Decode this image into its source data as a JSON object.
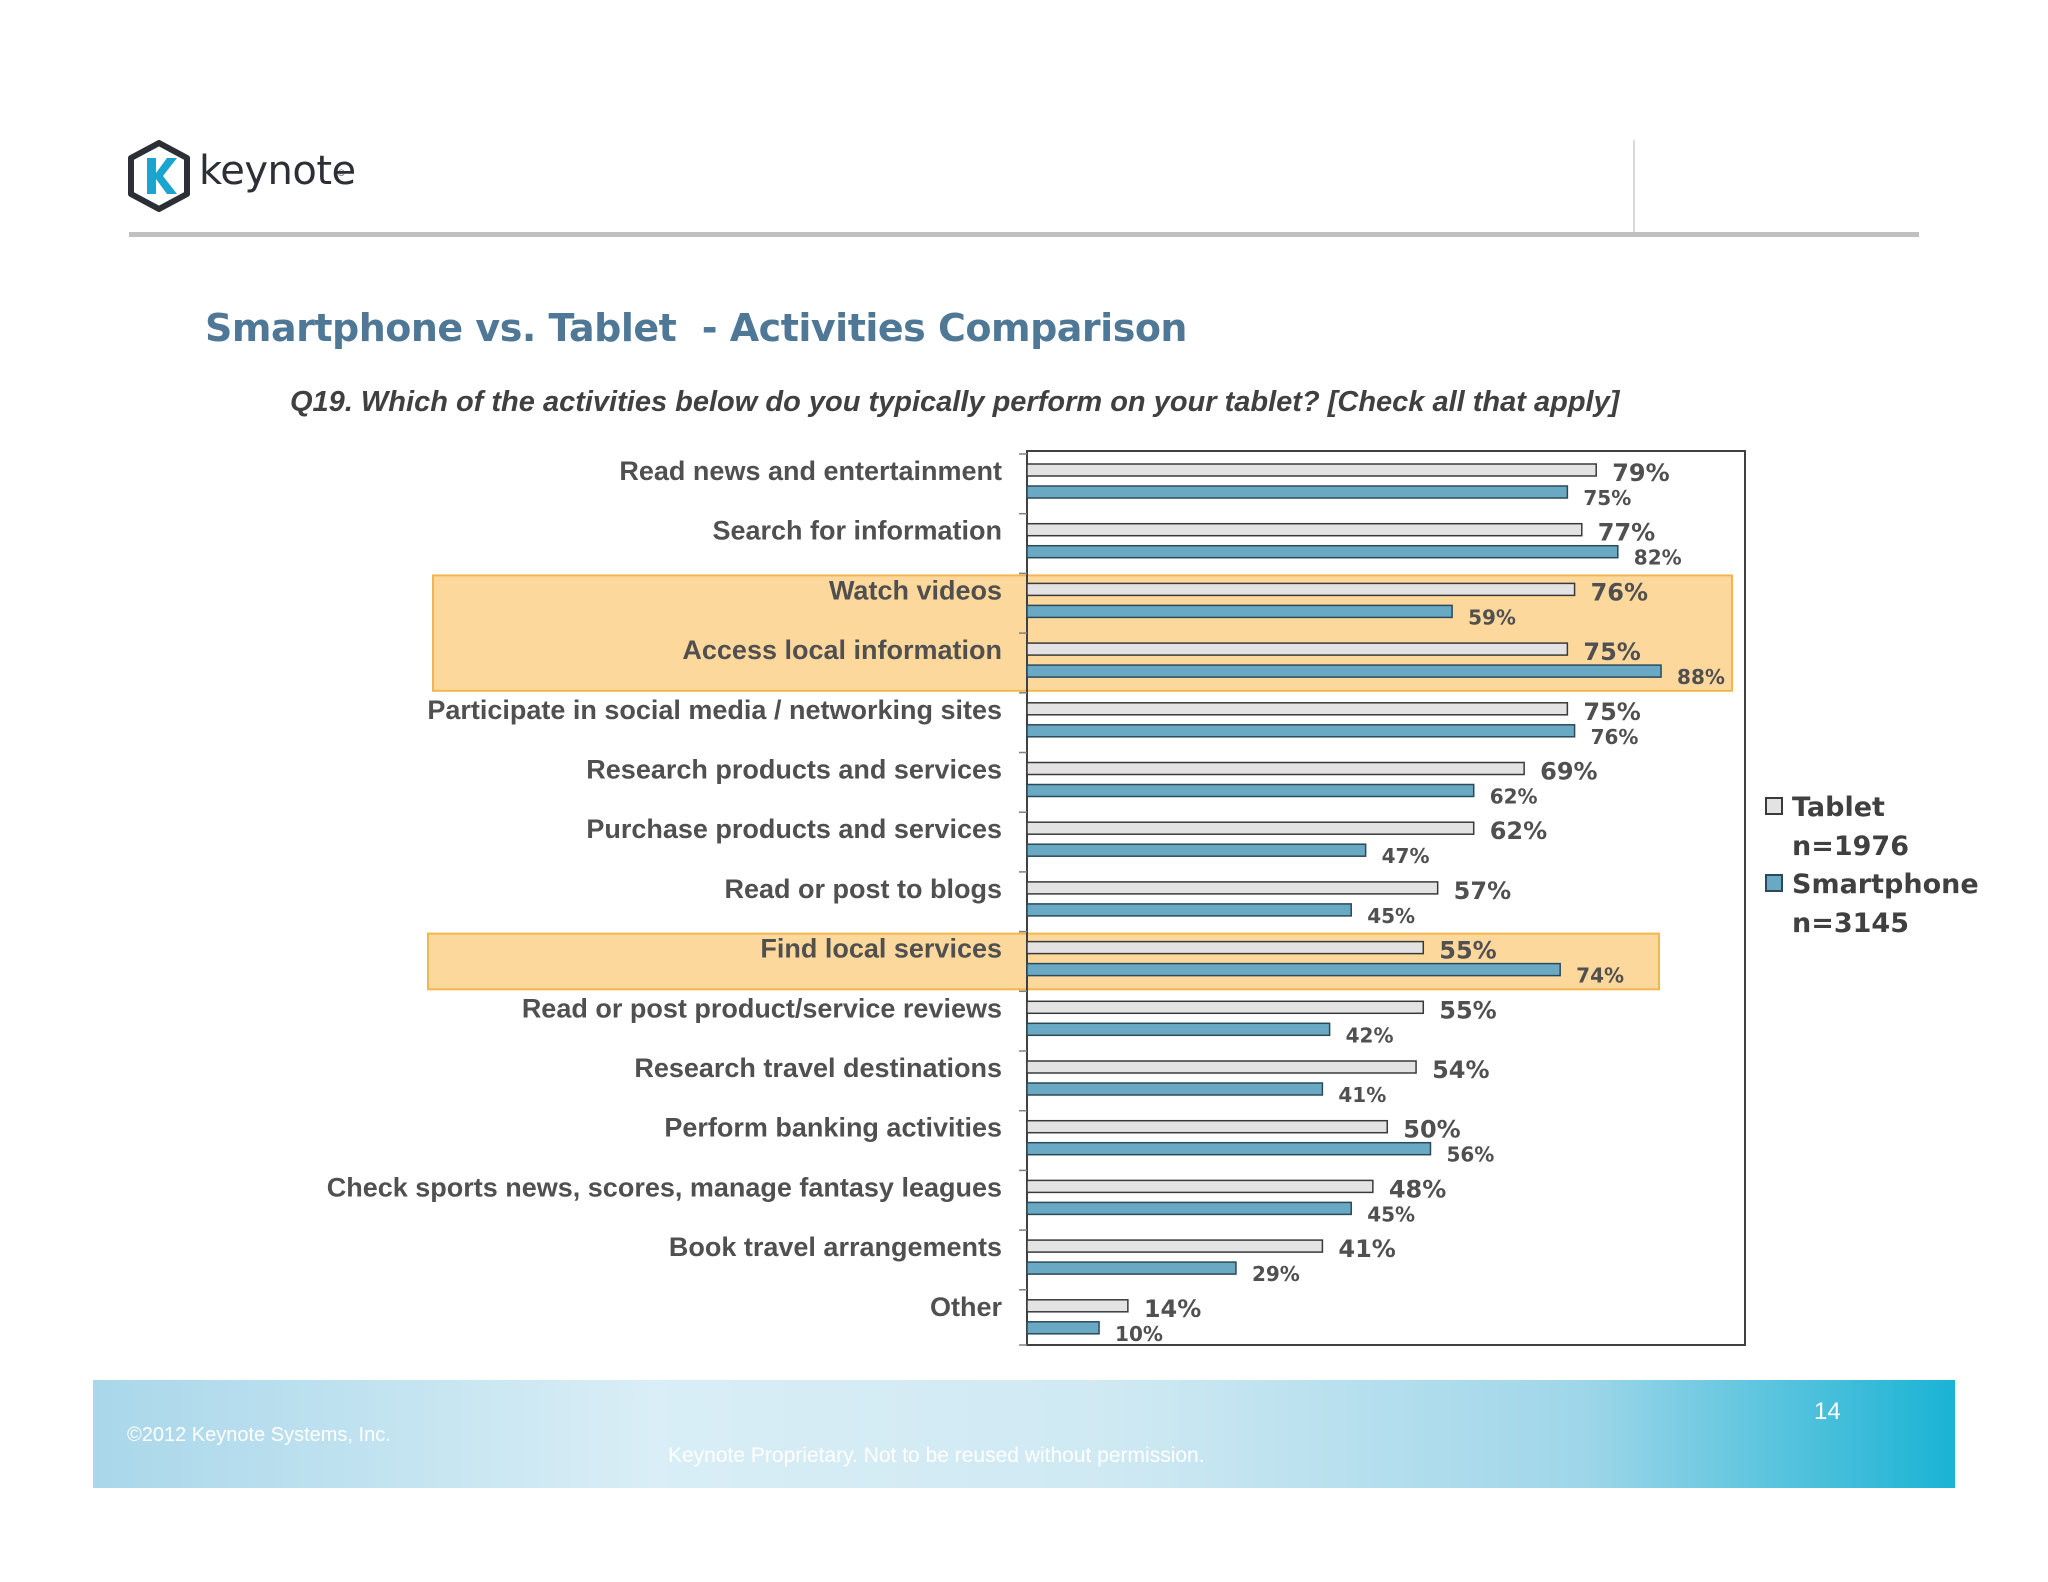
{
  "header": {
    "logo_text": "keynote",
    "logo_reg": "®"
  },
  "slide": {
    "title": "Smartphone vs. Tablet  - Activities Comparison",
    "question": "Q19. Which of the activities below do you typically perform on your tablet? [Check all that apply]"
  },
  "colors": {
    "title": "#4f7896",
    "tablet_bar": "#e3e3e3",
    "smartphone_bar": "#6aa9c4",
    "highlight_fill": "#fdd89c",
    "highlight_border": "#f2b64f"
  },
  "chart_data": {
    "type": "bar",
    "orientation": "horizontal",
    "categories": [
      "Read news and entertainment",
      "Search for information",
      "Watch videos",
      "Access local information",
      "Participate in social media / networking sites",
      "Research products and services",
      "Purchase products and services",
      "Read or post to blogs",
      "Find local services",
      "Read or post product/service reviews",
      "Research travel destinations",
      "Perform banking activities",
      "Check sports news, scores, manage fantasy leagues",
      "Book travel arrangements",
      "Other"
    ],
    "series": [
      {
        "name": "Tablet",
        "values": [
          79,
          77,
          76,
          75,
          75,
          69,
          62,
          57,
          55,
          55,
          54,
          50,
          48,
          41,
          14
        ]
      },
      {
        "name": "Smartphone",
        "values": [
          75,
          82,
          59,
          88,
          76,
          62,
          47,
          45,
          74,
          42,
          41,
          56,
          45,
          29,
          10
        ]
      }
    ],
    "value_suffix": "%",
    "xlim": [
      0,
      100
    ],
    "legend": [
      {
        "label": "Tablet",
        "sublabel": "n=1976"
      },
      {
        "label": "Smartphone",
        "sublabel": "n=3145"
      }
    ],
    "legend_position": "right",
    "highlighted_categories": [
      [
        2,
        3
      ],
      [
        8,
        8
      ]
    ]
  },
  "footer": {
    "copyright": "©2012 Keynote Systems, Inc.",
    "proprietary": "Keynote Proprietary. Not to be reused without permission.",
    "page_number": "14"
  }
}
